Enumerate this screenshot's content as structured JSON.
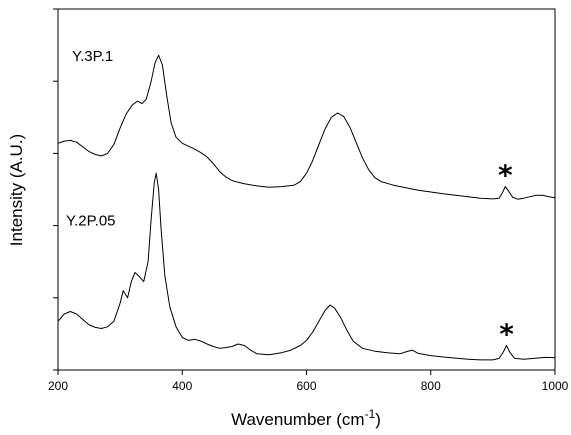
{
  "chart_data": {
    "type": "line",
    "xlabel": "Wavenumber (cm",
    "xlabel_sup": "-1",
    "xlabel_close": ")",
    "ylabel": "Intensity (A.U.)",
    "xlim": [
      200,
      1000
    ],
    "ylim": [
      0,
      10
    ],
    "x_ticks": [
      200,
      400,
      600,
      800,
      1000
    ],
    "y_ticks": [
      0,
      2,
      4,
      6,
      8,
      10
    ],
    "y_tick_labels_visible": false,
    "grid": false,
    "legend": "none",
    "series": [
      {
        "name": "Y.3P.1",
        "peak_marker": "*",
        "marker_x": 920,
        "points": [
          [
            200,
            6.28
          ],
          [
            210,
            6.34
          ],
          [
            220,
            6.36
          ],
          [
            230,
            6.31
          ],
          [
            240,
            6.18
          ],
          [
            250,
            6.05
          ],
          [
            260,
            5.97
          ],
          [
            270,
            5.93
          ],
          [
            280,
            6.0
          ],
          [
            290,
            6.25
          ],
          [
            300,
            6.7
          ],
          [
            310,
            7.1
          ],
          [
            320,
            7.35
          ],
          [
            328,
            7.45
          ],
          [
            335,
            7.38
          ],
          [
            342,
            7.5
          ],
          [
            350,
            8.0
          ],
          [
            356,
            8.5
          ],
          [
            362,
            8.72
          ],
          [
            368,
            8.45
          ],
          [
            375,
            7.6
          ],
          [
            382,
            6.85
          ],
          [
            390,
            6.45
          ],
          [
            400,
            6.28
          ],
          [
            410,
            6.2
          ],
          [
            420,
            6.12
          ],
          [
            430,
            6.02
          ],
          [
            440,
            5.9
          ],
          [
            450,
            5.72
          ],
          [
            460,
            5.5
          ],
          [
            470,
            5.35
          ],
          [
            480,
            5.25
          ],
          [
            490,
            5.2
          ],
          [
            500,
            5.16
          ],
          [
            520,
            5.1
          ],
          [
            540,
            5.06
          ],
          [
            560,
            5.08
          ],
          [
            570,
            5.1
          ],
          [
            580,
            5.12
          ],
          [
            590,
            5.22
          ],
          [
            600,
            5.45
          ],
          [
            610,
            5.8
          ],
          [
            620,
            6.25
          ],
          [
            630,
            6.68
          ],
          [
            640,
            7.0
          ],
          [
            650,
            7.12
          ],
          [
            660,
            7.02
          ],
          [
            670,
            6.72
          ],
          [
            680,
            6.3
          ],
          [
            690,
            5.88
          ],
          [
            700,
            5.55
          ],
          [
            710,
            5.33
          ],
          [
            720,
            5.22
          ],
          [
            740,
            5.12
          ],
          [
            760,
            5.05
          ],
          [
            780,
            4.98
          ],
          [
            800,
            4.93
          ],
          [
            820,
            4.88
          ],
          [
            840,
            4.84
          ],
          [
            860,
            4.8
          ],
          [
            880,
            4.76
          ],
          [
            900,
            4.74
          ],
          [
            910,
            4.76
          ],
          [
            915,
            4.9
          ],
          [
            920,
            5.08
          ],
          [
            925,
            4.96
          ],
          [
            932,
            4.78
          ],
          [
            940,
            4.73
          ],
          [
            950,
            4.76
          ],
          [
            960,
            4.8
          ],
          [
            970,
            4.84
          ],
          [
            980,
            4.84
          ],
          [
            990,
            4.8
          ],
          [
            1000,
            4.77
          ]
        ]
      },
      {
        "name": "Y.2P.05",
        "peak_marker": "*",
        "marker_x": 920,
        "points": [
          [
            200,
            1.35
          ],
          [
            210,
            1.55
          ],
          [
            220,
            1.62
          ],
          [
            230,
            1.55
          ],
          [
            240,
            1.4
          ],
          [
            250,
            1.25
          ],
          [
            260,
            1.18
          ],
          [
            270,
            1.15
          ],
          [
            280,
            1.2
          ],
          [
            290,
            1.35
          ],
          [
            300,
            1.85
          ],
          [
            305,
            2.2
          ],
          [
            312,
            2.0
          ],
          [
            318,
            2.45
          ],
          [
            324,
            2.7
          ],
          [
            330,
            2.6
          ],
          [
            338,
            2.45
          ],
          [
            345,
            3.0
          ],
          [
            350,
            4.2
          ],
          [
            355,
            5.2
          ],
          [
            358,
            5.45
          ],
          [
            362,
            5.0
          ],
          [
            366,
            3.9
          ],
          [
            372,
            2.6
          ],
          [
            380,
            1.75
          ],
          [
            390,
            1.2
          ],
          [
            400,
            0.9
          ],
          [
            410,
            0.82
          ],
          [
            420,
            0.85
          ],
          [
            430,
            0.8
          ],
          [
            440,
            0.72
          ],
          [
            450,
            0.65
          ],
          [
            460,
            0.6
          ],
          [
            470,
            0.62
          ],
          [
            480,
            0.65
          ],
          [
            490,
            0.72
          ],
          [
            500,
            0.68
          ],
          [
            510,
            0.55
          ],
          [
            520,
            0.45
          ],
          [
            540,
            0.42
          ],
          [
            560,
            0.48
          ],
          [
            575,
            0.55
          ],
          [
            590,
            0.68
          ],
          [
            600,
            0.82
          ],
          [
            610,
            1.05
          ],
          [
            620,
            1.35
          ],
          [
            630,
            1.65
          ],
          [
            638,
            1.8
          ],
          [
            645,
            1.72
          ],
          [
            655,
            1.45
          ],
          [
            665,
            1.1
          ],
          [
            675,
            0.8
          ],
          [
            690,
            0.6
          ],
          [
            710,
            0.52
          ],
          [
            730,
            0.48
          ],
          [
            750,
            0.45
          ],
          [
            760,
            0.5
          ],
          [
            770,
            0.55
          ],
          [
            780,
            0.46
          ],
          [
            800,
            0.4
          ],
          [
            820,
            0.36
          ],
          [
            840,
            0.33
          ],
          [
            860,
            0.3
          ],
          [
            880,
            0.28
          ],
          [
            900,
            0.28
          ],
          [
            910,
            0.32
          ],
          [
            917,
            0.5
          ],
          [
            922,
            0.68
          ],
          [
            927,
            0.5
          ],
          [
            935,
            0.32
          ],
          [
            950,
            0.3
          ],
          [
            970,
            0.33
          ],
          [
            985,
            0.35
          ],
          [
            1000,
            0.34
          ]
        ]
      }
    ]
  }
}
